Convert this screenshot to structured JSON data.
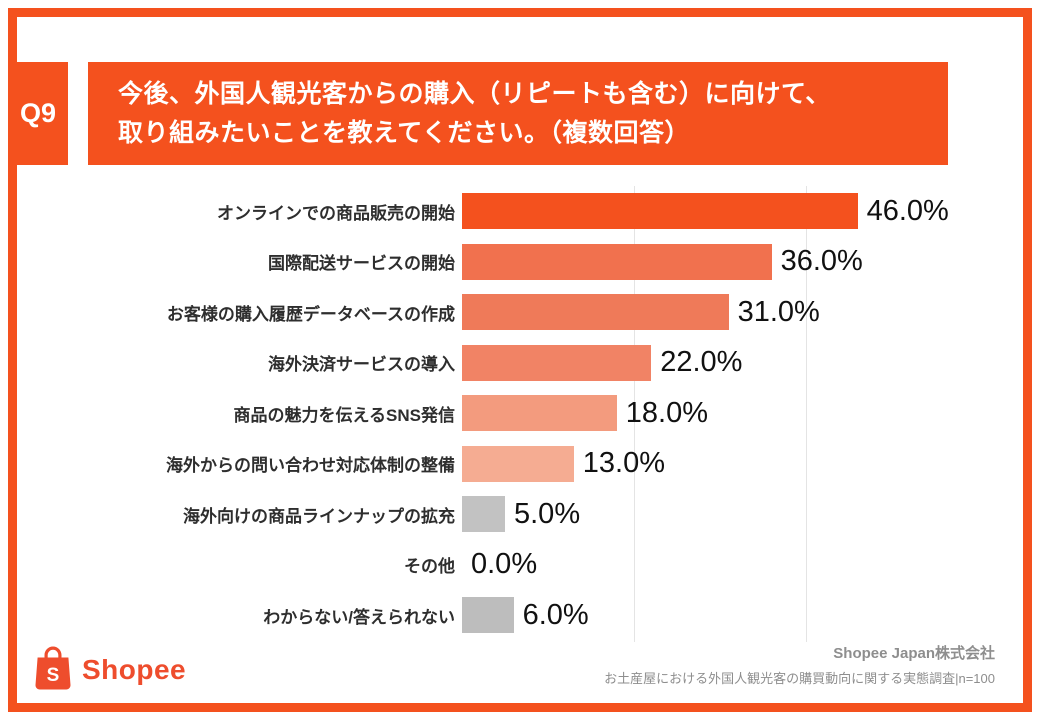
{
  "header": {
    "q_label": "Q9",
    "title_line1": "今後、外国人観光客からの購入（リピートも含む）に向けて、",
    "title_line2": "取り組みたいことを教えてください。（複数回答）"
  },
  "colors": {
    "accent": "#F4511E",
    "logo_orange": "#EE4D2D",
    "gray_bar": "#BDBDBD"
  },
  "chart_data": {
    "type": "bar",
    "orientation": "horizontal",
    "title": "今後、外国人観光客からの購入（リピートも含む）に向けて、取り組みたいことを教えてください。（複数回答）",
    "categories": [
      "オンラインでの商品販売の開始",
      "国際配送サービスの開始",
      "お客様の購入履歴データベースの作成",
      "海外決済サービスの導入",
      "商品の魅力を伝えるSNS発信",
      "海外からの問い合わせ対応体制の整備",
      "海外向けの商品ラインナップの拡充",
      "その他",
      "わからない/答えられない"
    ],
    "values": [
      46.0,
      36.0,
      31.0,
      22.0,
      18.0,
      13.0,
      5.0,
      0.0,
      6.0
    ],
    "value_labels": [
      "46.0%",
      "36.0%",
      "31.0%",
      "22.0%",
      "18.0%",
      "13.0%",
      "5.0%",
      "0.0%",
      "6.0%"
    ],
    "bar_colors": [
      "#F4511E",
      "#F1714E",
      "#EF7A59",
      "#F18365",
      "#F39B7E",
      "#F5AC92",
      "#C2C2C2",
      "#C2C2C2",
      "#BDBDBD"
    ],
    "xlim": [
      0,
      50
    ],
    "gridline_pcts": [
      20,
      40
    ],
    "sample": "n=100"
  },
  "footer": {
    "logo_text": "Shopee",
    "source_line1": "Shopee Japan株式会社",
    "source_line2": "お土産屋における外国人観光客の購買動向に関する実態調査|n=100"
  }
}
